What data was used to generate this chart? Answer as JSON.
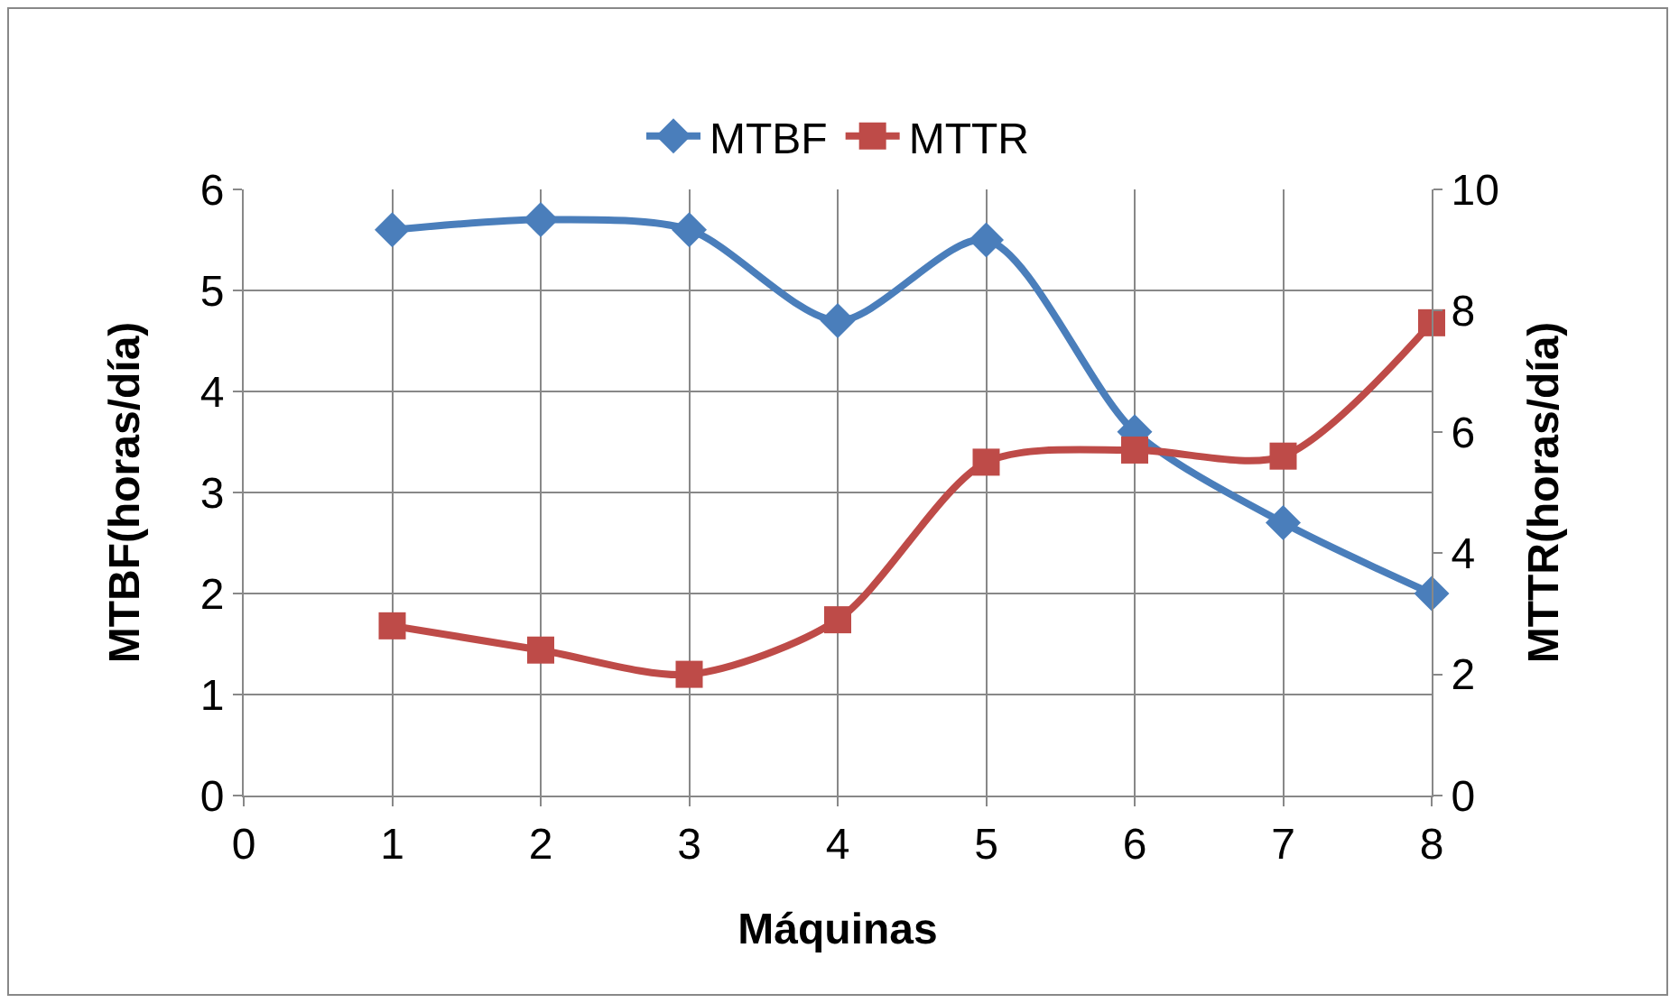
{
  "chart_data": {
    "type": "line",
    "xlabel": "Máquinas",
    "ylabel": "MTBF(horas/día)",
    "y2label": "MTTR(horas/día)",
    "x": [
      1,
      2,
      3,
      4,
      5,
      6,
      7,
      8
    ],
    "series": [
      {
        "name": "MTBF",
        "color": "#4a7ebb",
        "marker": "diamond",
        "values": [
          5.6,
          5.7,
          5.6,
          4.7,
          5.5,
          3.6,
          2.7,
          2.0
        ]
      },
      {
        "name": "MTTR",
        "color": "#be4b48",
        "marker": "square",
        "axis": "y2",
        "values": [
          2.8,
          2.4,
          2.0,
          2.9,
          5.5,
          5.7,
          5.6,
          7.8
        ]
      }
    ],
    "xlim": [
      0,
      8
    ],
    "xticks": [
      0,
      1,
      2,
      3,
      4,
      5,
      6,
      7,
      8
    ],
    "ylim": [
      0,
      6
    ],
    "yticks": [
      0,
      1,
      2,
      3,
      4,
      5,
      6
    ],
    "y2lim": [
      0,
      10
    ],
    "y2ticks": [
      0,
      2,
      4,
      6,
      8,
      10
    ],
    "grid": true,
    "legend": "top",
    "line_style": "solid"
  }
}
